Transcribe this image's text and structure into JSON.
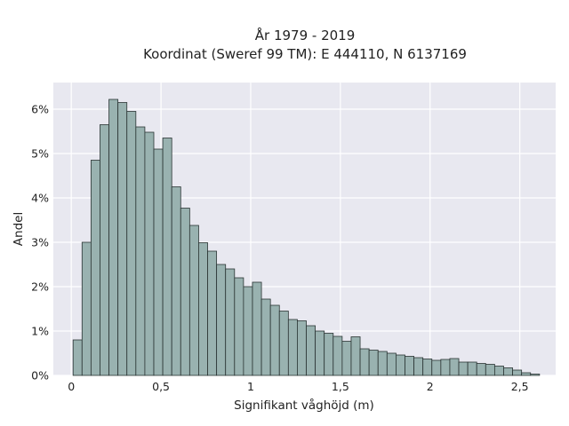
{
  "chart_data": {
    "type": "bar",
    "title": "År 1979 - 2019",
    "subtitle": "Koordinat (Sweref 99 TM): E 444110, N 6137169",
    "xlabel": "Signifikant våghöjd (m)",
    "ylabel": "Andel",
    "xlim": [
      -0.1,
      2.7
    ],
    "ylim": [
      0,
      6.6
    ],
    "x_ticks": [
      {
        "value": 0,
        "label": "0"
      },
      {
        "value": 0.5,
        "label": "0,5"
      },
      {
        "value": 1,
        "label": "1"
      },
      {
        "value": 1.5,
        "label": "1,5"
      },
      {
        "value": 2,
        "label": "2"
      },
      {
        "value": 2.5,
        "label": "2,5"
      }
    ],
    "y_ticks": [
      {
        "value": 0,
        "label": "0%"
      },
      {
        "value": 1,
        "label": "1%"
      },
      {
        "value": 2,
        "label": "2%"
      },
      {
        "value": 3,
        "label": "3%"
      },
      {
        "value": 4,
        "label": "4%"
      },
      {
        "value": 5,
        "label": "5%"
      },
      {
        "value": 6,
        "label": "6%"
      }
    ],
    "unit": "%",
    "grid": true,
    "bin_width": 0.05,
    "bin_start": 0.01,
    "values": [
      0.8,
      3.0,
      4.85,
      5.65,
      6.22,
      6.15,
      5.95,
      5.6,
      5.48,
      5.1,
      5.35,
      4.25,
      3.77,
      3.38,
      2.99,
      2.8,
      2.5,
      2.4,
      2.2,
      2.0,
      2.1,
      1.72,
      1.58,
      1.45,
      1.26,
      1.23,
      1.12,
      1.0,
      0.95,
      0.88,
      0.77,
      0.87,
      0.6,
      0.57,
      0.54,
      0.5,
      0.46,
      0.43,
      0.4,
      0.37,
      0.34,
      0.36,
      0.38,
      0.3,
      0.3,
      0.27,
      0.25,
      0.21,
      0.17,
      0.12,
      0.06,
      0.03
    ],
    "colors": {
      "bar_fill": "#99b2b0",
      "bar_stroke": "#2a3433",
      "plot_bg": "#e8e8f0",
      "grid": "#ffffff"
    }
  }
}
